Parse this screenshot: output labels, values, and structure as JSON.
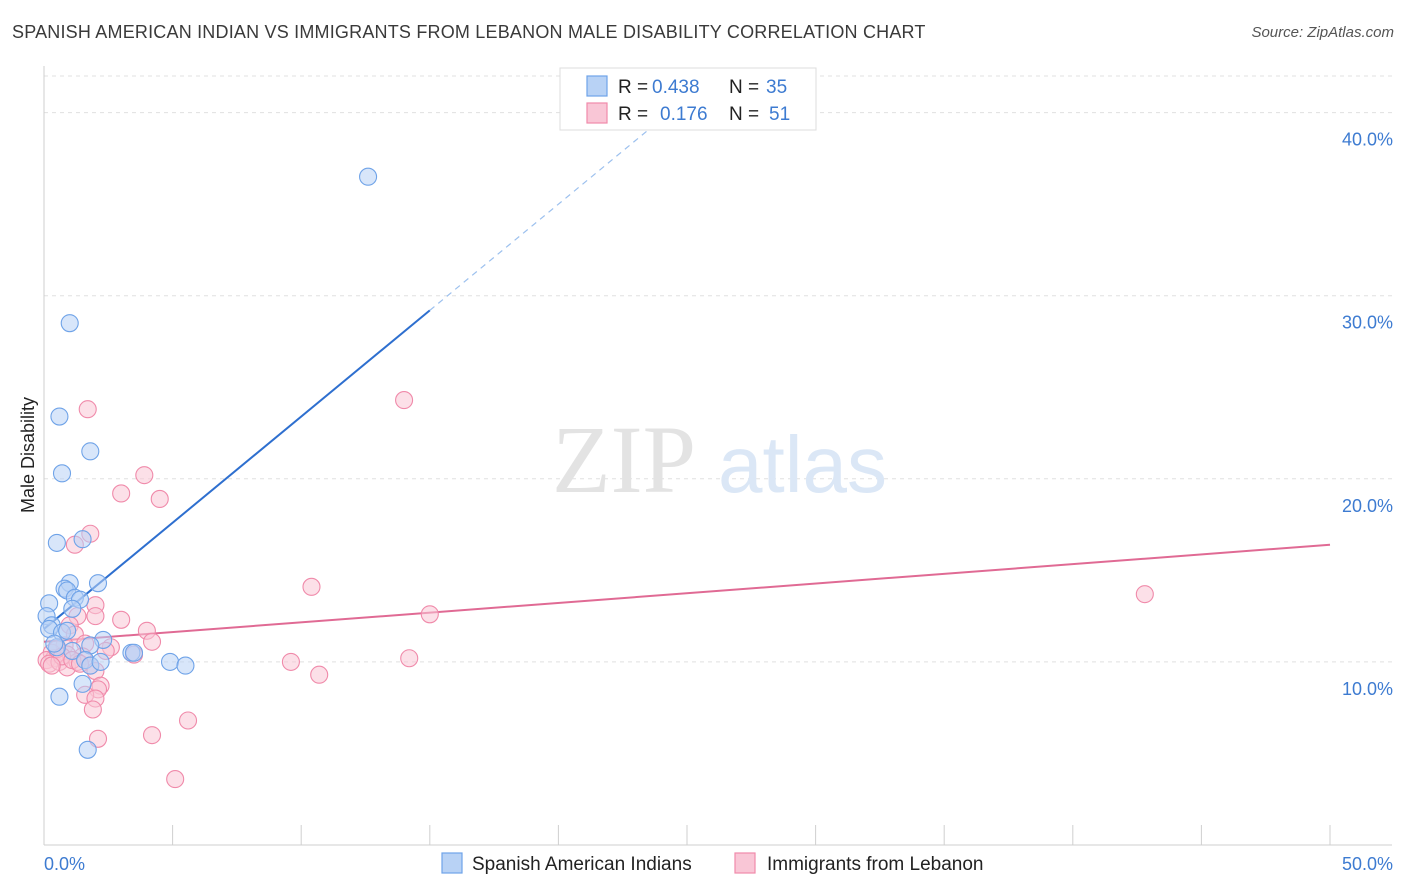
{
  "header": {
    "title": "SPANISH AMERICAN INDIAN VS IMMIGRANTS FROM LEBANON MALE DISABILITY CORRELATION CHART",
    "source": "Source: ZipAtlas.com"
  },
  "watermark": {
    "zip": "ZIP",
    "atlas": "atlas"
  },
  "chart_data": {
    "type": "scatter",
    "title": "SPANISH AMERICAN INDIAN VS IMMIGRANTS FROM LEBANON MALE DISABILITY CORRELATION CHART",
    "xlabel": "",
    "ylabel": "Male Disability",
    "xlim": [
      0,
      50
    ],
    "ylim": [
      0,
      42
    ],
    "x_tick_labels": {
      "left": "0.0%",
      "right": "50.0%"
    },
    "y_ticks": [
      {
        "value": 10,
        "label": "10.0%"
      },
      {
        "value": 20,
        "label": "20.0%"
      },
      {
        "value": 30,
        "label": "30.0%"
      },
      {
        "value": 40,
        "label": "40.0%"
      }
    ],
    "legend": [
      {
        "r_label": "R =",
        "r_value": "0.438",
        "n_label": "N =",
        "n_value": "35",
        "color": "#6fa3e8"
      },
      {
        "r_label": "R =",
        "r_value": "0.176",
        "n_label": "N =",
        "n_value": "51",
        "color": "#f08aaa"
      }
    ],
    "series": [
      {
        "name": "Spanish American Indians",
        "color": "#6fa3e8",
        "fill": "#b8d2f5",
        "trend": {
          "x0": 0,
          "y0": 11.8,
          "x1": 15,
          "y1": 29.2,
          "dash_to_x": 25,
          "dash_to_y": 40.8,
          "color": "#2e6fcf"
        },
        "points": [
          [
            12.6,
            36.5
          ],
          [
            1.0,
            28.5
          ],
          [
            0.6,
            23.4
          ],
          [
            1.8,
            21.5
          ],
          [
            0.7,
            20.3
          ],
          [
            0.5,
            16.5
          ],
          [
            1.5,
            16.7
          ],
          [
            2.1,
            14.3
          ],
          [
            1.0,
            14.3
          ],
          [
            0.8,
            14.0
          ],
          [
            0.9,
            13.9
          ],
          [
            1.2,
            13.5
          ],
          [
            0.2,
            13.2
          ],
          [
            1.4,
            13.4
          ],
          [
            1.1,
            12.9
          ],
          [
            0.1,
            12.5
          ],
          [
            0.3,
            12.0
          ],
          [
            0.2,
            11.8
          ],
          [
            0.7,
            11.6
          ],
          [
            0.9,
            11.7
          ],
          [
            2.3,
            11.2
          ],
          [
            1.8,
            10.9
          ],
          [
            1.1,
            10.6
          ],
          [
            0.5,
            10.8
          ],
          [
            3.4,
            10.5
          ],
          [
            3.5,
            10.5
          ],
          [
            1.6,
            10.1
          ],
          [
            1.8,
            9.8
          ],
          [
            2.2,
            10.0
          ],
          [
            4.9,
            10.0
          ],
          [
            5.5,
            9.8
          ],
          [
            1.5,
            8.8
          ],
          [
            0.6,
            8.1
          ],
          [
            1.7,
            5.2
          ],
          [
            0.4,
            11.0
          ]
        ]
      },
      {
        "name": "Immigrants from Lebanon",
        "color": "#f08aaa",
        "fill": "#f9c6d6",
        "trend": {
          "x0": 0,
          "y0": 11.1,
          "x1": 50,
          "y1": 16.4,
          "color": "#e06a94"
        },
        "points": [
          [
            14.0,
            24.3
          ],
          [
            1.7,
            23.8
          ],
          [
            3.9,
            20.2
          ],
          [
            3.0,
            19.2
          ],
          [
            4.5,
            18.9
          ],
          [
            1.8,
            17.0
          ],
          [
            1.2,
            16.4
          ],
          [
            10.4,
            14.1
          ],
          [
            42.8,
            13.7
          ],
          [
            2.0,
            13.1
          ],
          [
            15.0,
            12.6
          ],
          [
            2.0,
            12.5
          ],
          [
            1.3,
            12.5
          ],
          [
            3.0,
            12.3
          ],
          [
            1.0,
            12.0
          ],
          [
            4.0,
            11.7
          ],
          [
            1.2,
            11.5
          ],
          [
            4.2,
            11.1
          ],
          [
            1.6,
            11.0
          ],
          [
            0.8,
            10.9
          ],
          [
            2.6,
            10.8
          ],
          [
            3.5,
            10.4
          ],
          [
            0.3,
            10.5
          ],
          [
            0.9,
            10.4
          ],
          [
            0.4,
            10.2
          ],
          [
            1.5,
            10.3
          ],
          [
            0.1,
            10.1
          ],
          [
            0.2,
            9.9
          ],
          [
            0.6,
            10.0
          ],
          [
            0.9,
            9.7
          ],
          [
            1.3,
            10.0
          ],
          [
            1.8,
            9.8
          ],
          [
            14.2,
            10.2
          ],
          [
            9.6,
            10.0
          ],
          [
            10.7,
            9.3
          ],
          [
            2.0,
            9.5
          ],
          [
            2.2,
            8.7
          ],
          [
            2.1,
            8.5
          ],
          [
            1.6,
            8.2
          ],
          [
            2.0,
            8.0
          ],
          [
            1.9,
            7.4
          ],
          [
            5.6,
            6.8
          ],
          [
            2.1,
            5.8
          ],
          [
            4.2,
            6.0
          ],
          [
            5.1,
            3.6
          ],
          [
            0.5,
            10.7
          ],
          [
            0.7,
            10.3
          ],
          [
            1.1,
            10.1
          ],
          [
            1.4,
            9.9
          ],
          [
            0.3,
            9.8
          ],
          [
            2.4,
            10.6
          ]
        ]
      }
    ]
  }
}
